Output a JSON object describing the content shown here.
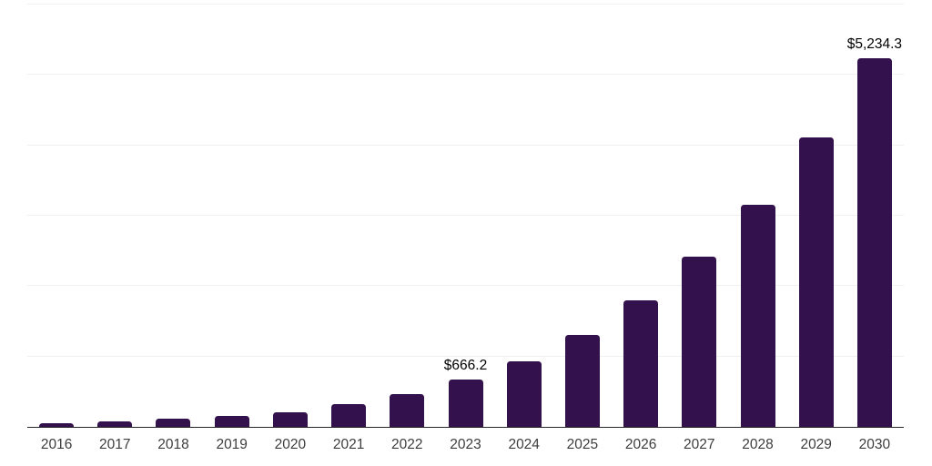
{
  "chart_data": {
    "type": "bar",
    "title": "",
    "categories": [
      "2016",
      "2017",
      "2018",
      "2019",
      "2020",
      "2021",
      "2022",
      "2023",
      "2024",
      "2025",
      "2026",
      "2027",
      "2028",
      "2029",
      "2030"
    ],
    "values": [
      55,
      80,
      111,
      153,
      213,
      328,
      460,
      666.2,
      936,
      1306,
      1797,
      2417,
      3158,
      4116,
      5234.3
    ],
    "value_labels": {
      "2023": "$666.2",
      "2030": "$5,234.3"
    },
    "xlabel": "",
    "ylabel": "",
    "ylim": [
      0,
      6000
    ],
    "gridline_interval": 1000,
    "grid": "horizontal-only",
    "legend": "none",
    "colors": {
      "bar": "#33114C",
      "value_label": "#000000",
      "axis_label": "#3d3d3d",
      "gridline": "#f0f0f0",
      "baseline": "#262626",
      "background": "#ffffff"
    }
  }
}
